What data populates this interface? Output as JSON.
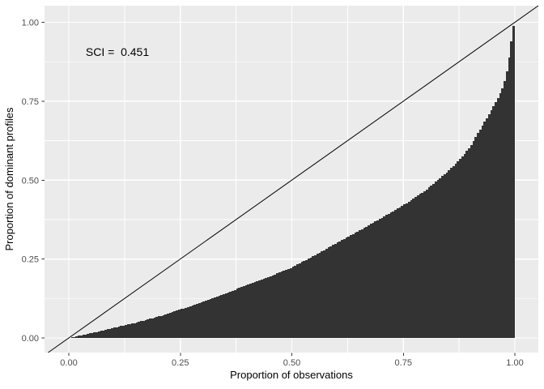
{
  "figure": {
    "kind": "ggplot2-style statistical plot",
    "title": "",
    "legend": "none"
  },
  "chart_data": {
    "type": "bar",
    "description": "Concentration (Lorenz-style) curve: cumulative proportion of dominant profiles vs cumulative proportion of observations, drawn as many thin dark bars under a diagonal line of equality",
    "annotation": "SCI =  0.451",
    "sci_value": 0.451,
    "xlabel": "Proportion of observations",
    "ylabel": "Proportion of dominant profiles",
    "xlim": [
      0,
      1
    ],
    "ylim": [
      0,
      1
    ],
    "x_major_ticks": [
      0,
      0.25,
      0.5,
      0.75,
      1
    ],
    "x_tick_labels": [
      "0.00",
      "0.25",
      "0.50",
      "0.75",
      "1.00"
    ],
    "y_major_ticks": [
      0,
      0.25,
      0.5,
      0.75,
      1
    ],
    "y_tick_labels": [
      "0.00",
      "0.25",
      "0.50",
      "0.75",
      "1.00"
    ],
    "x_minor_ticks": [
      0.125,
      0.375,
      0.625,
      0.875
    ],
    "y_minor_ticks": [
      0.125,
      0.375,
      0.625,
      0.875
    ],
    "grid": "white major and minor gridlines on gray panel",
    "legend_position": "none",
    "n_bars": 200,
    "reference_line": {
      "slope": 1,
      "intercept": 0
    },
    "curve_points": {
      "x": [
        0,
        0.05,
        0.1,
        0.15,
        0.2,
        0.25,
        0.3,
        0.35,
        0.4,
        0.45,
        0.5,
        0.55,
        0.6,
        0.65,
        0.7,
        0.75,
        0.8,
        0.85,
        0.875,
        0.9,
        0.92,
        0.94,
        0.96,
        0.975,
        0.985,
        0.99,
        0.994,
        0.997,
        1.0
      ],
      "y": [
        0,
        0.015,
        0.032,
        0.048,
        0.067,
        0.09,
        0.114,
        0.14,
        0.168,
        0.194,
        0.223,
        0.261,
        0.3,
        0.339,
        0.379,
        0.42,
        0.468,
        0.528,
        0.562,
        0.605,
        0.655,
        0.703,
        0.752,
        0.8,
        0.86,
        0.915,
        0.955,
        0.985,
        1.0
      ]
    },
    "colors": {
      "bar_fill": "#333333",
      "panel_background": "#EBEBEB",
      "gridline": "#FFFFFF",
      "reference_line": "#000000",
      "tick_mark": "#333333",
      "tick_label": "#4D4D4D",
      "axis_title": "#000000",
      "annotation_text": "#000000",
      "figure_background": "#FFFFFF"
    }
  }
}
